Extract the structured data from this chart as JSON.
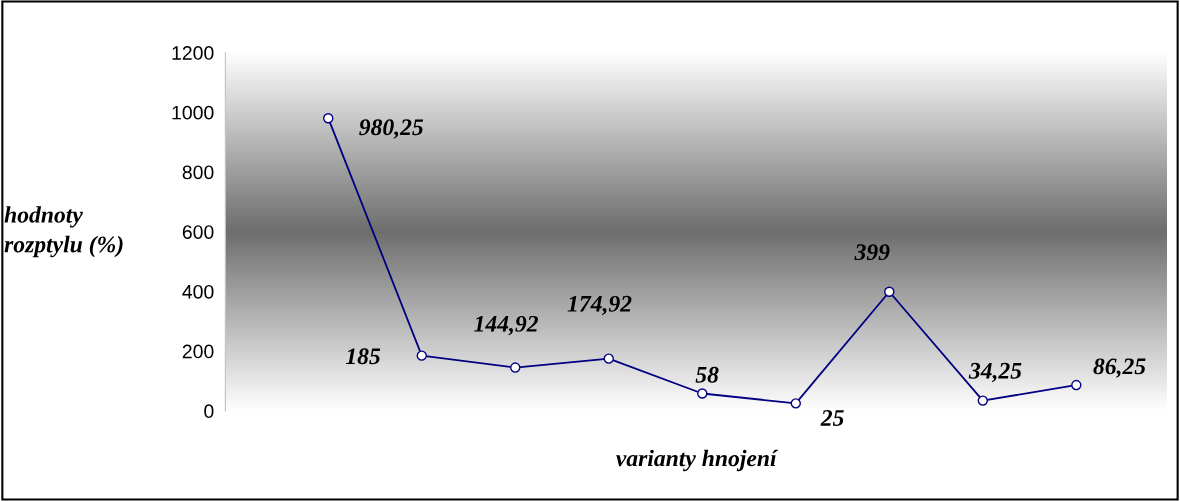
{
  "chart_data": {
    "type": "line",
    "xlabel": "varianty hnojení",
    "ylabel": "hodnoty\nrozptylu (%)",
    "categories": [
      null,
      null,
      null,
      null,
      null,
      null,
      null,
      null,
      null
    ],
    "series": [
      {
        "color": "#000080",
        "values": [
          980.25,
          185,
          144.92,
          174.92,
          58,
          25,
          399,
          34.25,
          86.25
        ],
        "value_labels": [
          "980,25",
          "185",
          "144,92",
          "174,92",
          "58",
          "25",
          "399",
          "34,25",
          "86,25"
        ]
      }
    ],
    "ylim": [
      0,
      1200
    ],
    "yticks": [
      0,
      200,
      400,
      600,
      800,
      1000,
      1200
    ],
    "tick_labels": "y",
    "grid": false,
    "marker": "circle",
    "line_style": "solid"
  }
}
